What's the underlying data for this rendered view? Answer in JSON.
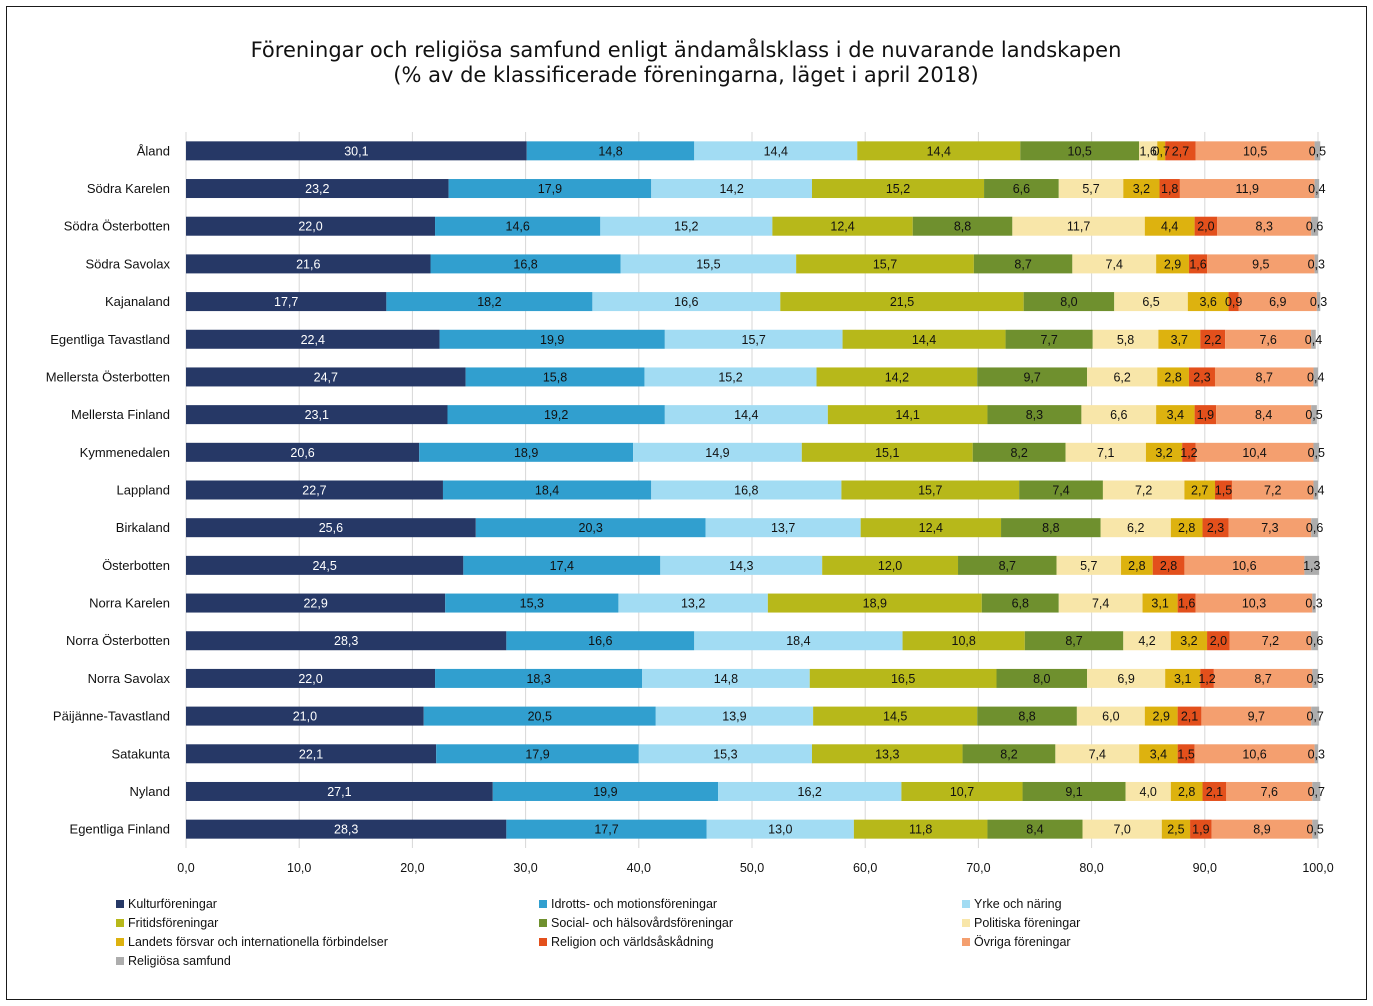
{
  "chart_data": {
    "type": "bar",
    "orientation": "horizontal",
    "stacked": true,
    "title": "Föreningar och religiösa samfund enligt ändamålsklass i de nuvarande landskapen",
    "subtitle": "(% av de klassificerade föreningarna, läget i april 2018)",
    "xlim": [
      0,
      100
    ],
    "xticks": [
      "0,0",
      "10,0",
      "20,0",
      "30,0",
      "40,0",
      "50,0",
      "60,0",
      "70,0",
      "80,0",
      "90,0",
      "100,0"
    ],
    "grid": "vertical",
    "legend_position": "bottom",
    "categories": [
      "Åland",
      "Södra Karelen",
      "Södra Österbotten",
      "Södra Savolax",
      "Kajanaland",
      "Egentliga Tavastland",
      "Mellersta Österbotten",
      "Mellersta Finland",
      "Kymmenedalen",
      "Lappland",
      "Birkaland",
      "Österbotten",
      "Norra Karelen",
      "Norra Österbotten",
      "Norra Savolax",
      "Päijänne-Tavastland",
      "Satakunta",
      "Nyland",
      "Egentliga Finland"
    ],
    "series": [
      {
        "name": "Kulturföreningar",
        "color": "#263866",
        "values": [
          30.1,
          23.2,
          22.0,
          21.6,
          17.7,
          22.4,
          24.7,
          23.1,
          20.6,
          22.7,
          25.6,
          24.5,
          22.9,
          28.3,
          22.0,
          21.0,
          22.1,
          27.1,
          28.3
        ]
      },
      {
        "name": "Idrotts- och motionsföreningar",
        "color": "#319fcf",
        "values": [
          14.8,
          17.9,
          14.6,
          16.8,
          18.2,
          19.9,
          15.8,
          19.2,
          18.9,
          18.4,
          20.3,
          17.4,
          15.3,
          16.6,
          18.3,
          20.5,
          17.9,
          19.9,
          17.7
        ]
      },
      {
        "name": "Yrke och näring",
        "color": "#a2dcf3",
        "values": [
          14.4,
          14.2,
          15.2,
          15.5,
          16.6,
          15.7,
          15.2,
          14.4,
          14.9,
          16.8,
          13.7,
          14.3,
          13.2,
          18.4,
          14.8,
          13.9,
          15.3,
          16.2,
          13.0
        ]
      },
      {
        "name": "Fritidsföreningar",
        "color": "#b7b81a",
        "values": [
          14.4,
          15.2,
          12.4,
          15.7,
          21.5,
          14.4,
          14.2,
          14.1,
          15.1,
          15.7,
          12.4,
          12.0,
          18.9,
          10.8,
          16.5,
          14.5,
          13.3,
          10.7,
          11.8
        ]
      },
      {
        "name": "Social- och hälsovårdsföreningar",
        "color": "#6f902e",
        "values": [
          10.5,
          6.6,
          8.8,
          8.7,
          8.0,
          7.7,
          9.7,
          8.3,
          8.2,
          7.4,
          8.8,
          8.7,
          6.8,
          8.7,
          8.0,
          8.8,
          8.2,
          9.1,
          8.4
        ]
      },
      {
        "name": "Politiska föreningar",
        "color": "#f8e6a9",
        "values": [
          1.6,
          5.7,
          11.7,
          7.4,
          6.5,
          5.8,
          6.2,
          6.6,
          7.1,
          7.2,
          6.2,
          5.7,
          7.4,
          4.2,
          6.9,
          6.0,
          7.4,
          4.0,
          7.0
        ]
      },
      {
        "name": "Landets försvar och internationella förbindelser",
        "color": "#ddb20f",
        "values": [
          0.7,
          3.2,
          4.4,
          2.9,
          3.6,
          3.7,
          2.8,
          3.4,
          3.2,
          2.7,
          2.8,
          2.8,
          3.1,
          3.2,
          3.1,
          2.9,
          3.4,
          2.8,
          2.5
        ]
      },
      {
        "name": "Religion och världsåskådning",
        "color": "#e3501c",
        "values": [
          2.7,
          1.8,
          2.0,
          1.6,
          0.9,
          2.2,
          2.3,
          1.9,
          1.2,
          1.5,
          2.3,
          2.8,
          1.6,
          2.0,
          1.2,
          2.1,
          1.5,
          2.1,
          1.9
        ]
      },
      {
        "name": "Övriga föreningar",
        "color": "#f49f6f",
        "values": [
          10.5,
          11.9,
          8.3,
          9.5,
          6.9,
          7.6,
          8.7,
          8.4,
          10.4,
          7.2,
          7.3,
          10.6,
          10.3,
          7.2,
          8.7,
          9.7,
          10.6,
          7.6,
          8.9
        ]
      },
      {
        "name": "Religiösa samfund",
        "color": "#adadad",
        "values": [
          0.5,
          0.4,
          0.6,
          0.3,
          0.3,
          0.4,
          0.4,
          0.5,
          0.5,
          0.4,
          0.6,
          1.3,
          0.3,
          0.6,
          0.5,
          0.7,
          0.3,
          0.7,
          0.5
        ]
      }
    ]
  }
}
